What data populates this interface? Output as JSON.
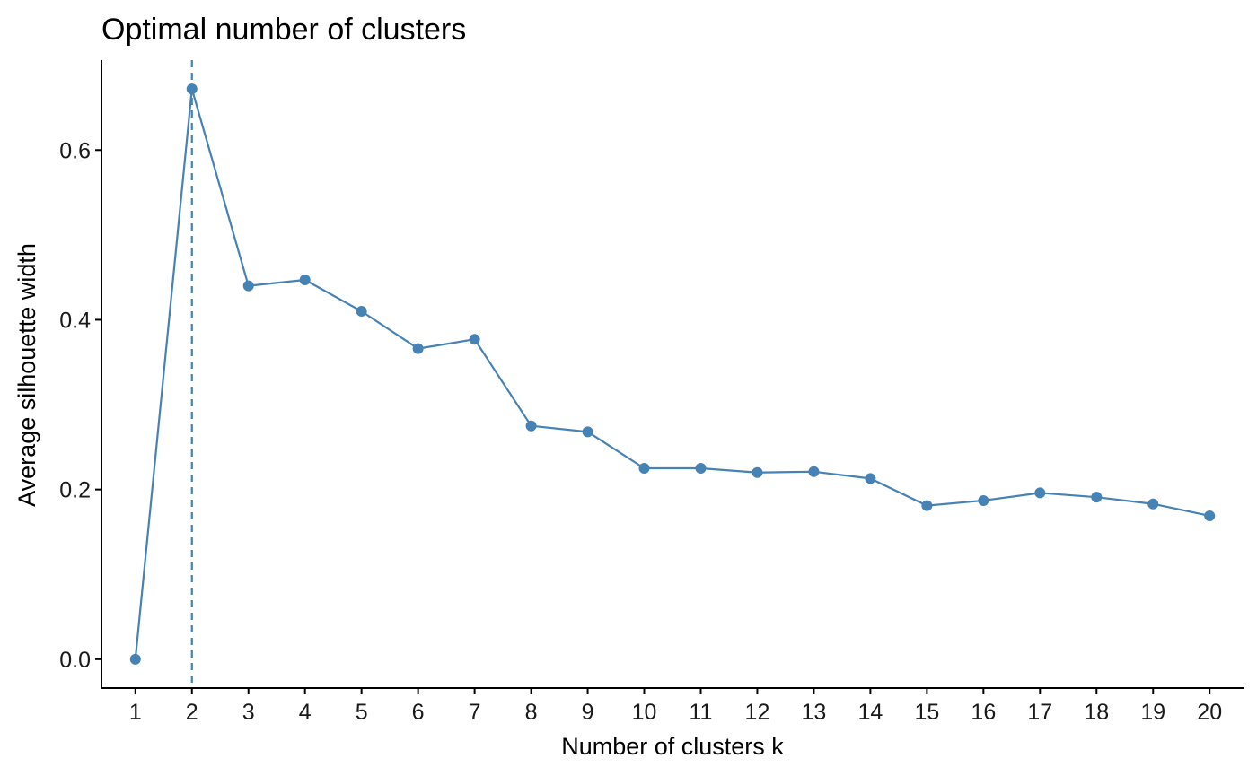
{
  "chart_data": {
    "type": "line",
    "title": "Optimal number of clusters",
    "xlabel": "Number of clusters k",
    "ylabel": "Average silhouette width",
    "x": [
      1,
      2,
      3,
      4,
      5,
      6,
      7,
      8,
      9,
      10,
      11,
      12,
      13,
      14,
      15,
      16,
      17,
      18,
      19,
      20
    ],
    "values": [
      0.0,
      0.672,
      0.44,
      0.447,
      0.41,
      0.366,
      0.377,
      0.275,
      0.268,
      0.225,
      0.225,
      0.22,
      0.221,
      0.213,
      0.181,
      0.187,
      0.196,
      0.191,
      0.183,
      0.169
    ],
    "xlim": [
      0.4,
      20.6
    ],
    "ylim": [
      -0.034,
      0.706
    ],
    "y_ticks": [
      0.0,
      0.2,
      0.4,
      0.6
    ],
    "y_tick_labels": [
      "0.0",
      "0.2",
      "0.4",
      "0.6"
    ],
    "optimal_k": 2,
    "grid": false,
    "legend": "none",
    "colors": {
      "series": "#4682b4",
      "reference_line": "#4682b4",
      "axis": "#000000",
      "background": "#ffffff"
    }
  }
}
